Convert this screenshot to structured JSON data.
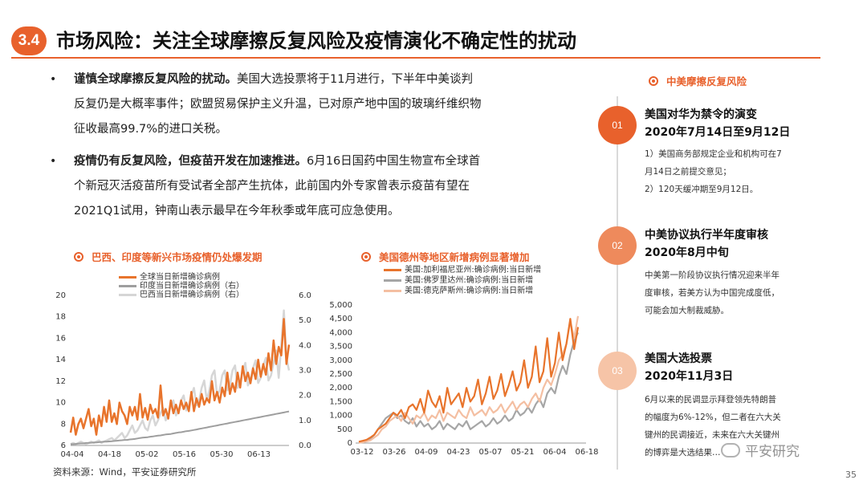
{
  "header": {
    "section_no": "3.4",
    "title": "市场风险：关注全球摩擦反复风险及疫情演化不确定性的扰动"
  },
  "bullets": [
    {
      "bold": "谨慎全球摩擦反复风险的扰动。",
      "lines": [
        "美国大选投票将于11月进行，下半年中美谈判",
        "反复仍是大概率事件；欧盟贸易保护主义升温，已对原产地中国的玻璃纤维织物",
        "征收最高99.7%的进口关税。"
      ]
    },
    {
      "bold": "疫情仍有反复风险，但疫苗开发在加速推进。",
      "lines": [
        "6月16日国药中国生物宣布全球首",
        "个新冠灭活疫苗所有受试者全部产生抗体，此前国内外专家曾表示疫苗有望在",
        "2021Q1试用，钟南山表示最早在今年秋季或年底可应急使用。"
      ]
    }
  ],
  "chart_left": {
    "heading": "巴西、印度等新兴市场疫情仍处爆发期",
    "chart_data": {
      "type": "line",
      "title": "巴西、印度等新兴市场疫情仍处爆发期",
      "x_ticks": [
        "04-04",
        "04-18",
        "05-02",
        "05-16",
        "05-30",
        "06-13"
      ],
      "ylim_left": [
        6,
        20
      ],
      "yticks_left": [
        "6",
        "8",
        "10",
        "12",
        "14",
        "16",
        "18",
        "20"
      ],
      "ylim_right": [
        0.0,
        6.0
      ],
      "yticks_right": [
        "0.0",
        "1.0",
        "2.0",
        "3.0",
        "4.0",
        "5.0",
        "6.0"
      ],
      "series": [
        {
          "name": "全球当日新增确诊病例",
          "axis": "left",
          "color": "#e8742c",
          "values": [
            7.2,
            8.6,
            7.0,
            8.0,
            8.5,
            7.6,
            8.5,
            9.4,
            7.8,
            8.5,
            7.0,
            8.8,
            7.8,
            9.6,
            8.2,
            10.2,
            8.2,
            9.0,
            8.0,
            10.0,
            9.2,
            8.8,
            8.0,
            9.6,
            8.8,
            9.6,
            8.4,
            10.8,
            8.6,
            9.5,
            8.4,
            9.8,
            9.0,
            9.4,
            8.6,
            11.6,
            8.8,
            9.4,
            8.5,
            10.2,
            9.0,
            9.8,
            9.0,
            10.2,
            9.4,
            10.0,
            9.2,
            11.0,
            9.2,
            10.4,
            9.6,
            10.8,
            9.8,
            10.4,
            10.0,
            12.0,
            10.2,
            11.0,
            10.0,
            11.4,
            10.6,
            12.8,
            10.8,
            11.8,
            11.0,
            12.8,
            11.4,
            13.4,
            12.0,
            12.8,
            11.8,
            13.2,
            12.2,
            14.0,
            12.4,
            13.6,
            12.6,
            14.6,
            13.0,
            15.8,
            13.6,
            15.2,
            14.4,
            17.8,
            13.6,
            15.4
          ]
        },
        {
          "name": "印度当日新增确诊病例（右）",
          "axis": "right",
          "color": "#9e9e9e",
          "values": [
            0.05,
            0.05,
            0.06,
            0.07,
            0.08,
            0.08,
            0.1,
            0.1,
            0.11,
            0.12,
            0.12,
            0.13,
            0.14,
            0.15,
            0.15,
            0.16,
            0.17,
            0.18,
            0.19,
            0.2,
            0.21,
            0.22,
            0.22,
            0.24,
            0.25,
            0.26,
            0.28,
            0.3,
            0.31,
            0.32,
            0.33,
            0.35,
            0.36,
            0.38,
            0.39,
            0.4,
            0.42,
            0.44,
            0.45,
            0.46,
            0.48,
            0.5,
            0.52,
            0.53,
            0.55,
            0.57,
            0.58,
            0.6,
            0.62,
            0.64,
            0.66,
            0.68,
            0.7,
            0.72,
            0.74,
            0.76,
            0.78,
            0.8,
            0.82,
            0.84,
            0.86,
            0.88,
            0.9,
            0.92,
            0.94,
            0.96,
            0.98,
            1.0,
            1.02,
            1.04,
            1.06,
            1.08,
            1.1,
            1.12,
            1.14,
            1.16,
            1.18,
            1.2,
            1.22,
            1.24,
            1.26,
            1.28,
            1.3,
            1.32,
            1.34,
            1.36
          ]
        },
        {
          "name": "巴西当日新增确诊病例（右）",
          "axis": "right",
          "color": "#d6d6d6",
          "values": [
            0.05,
            0.1,
            0.05,
            0.1,
            0.15,
            0.1,
            0.05,
            0.1,
            0.15,
            0.1,
            0.15,
            0.2,
            0.1,
            0.15,
            0.2,
            0.25,
            0.3,
            0.2,
            0.3,
            0.4,
            0.5,
            0.3,
            0.4,
            0.6,
            0.8,
            0.5,
            0.6,
            0.8,
            1.0,
            0.7,
            0.6,
            1.0,
            1.2,
            0.8,
            1.0,
            1.3,
            1.5,
            1.0,
            1.2,
            1.6,
            1.8,
            1.2,
            1.4,
            1.8,
            2.0,
            1.4,
            1.6,
            2.0,
            2.3,
            1.6,
            1.8,
            2.3,
            2.6,
            1.8,
            2.2,
            2.8,
            3.0,
            2.0,
            2.2,
            2.8,
            3.0,
            2.2,
            2.4,
            3.0,
            3.2,
            2.3,
            2.5,
            3.0,
            3.3,
            2.4,
            2.6,
            3.1,
            3.4,
            2.5,
            2.7,
            3.2,
            3.5,
            2.6,
            2.8,
            3.3,
            3.8,
            2.7,
            4.0,
            5.4,
            3.5,
            3.0
          ]
        }
      ]
    }
  },
  "chart_right": {
    "heading": "美国德州等地区新增病例显著增加",
    "chart_data": {
      "type": "line",
      "title": "美国德州等地区新增病例显著增加",
      "x_ticks": [
        "03-12",
        "03-26",
        "04-09",
        "04-23",
        "05-07",
        "05-21",
        "06-04",
        "06-18"
      ],
      "ylim": [
        0,
        5000
      ],
      "yticks": [
        "0",
        "500",
        "1,000",
        "1,500",
        "2,000",
        "2,500",
        "3,000",
        "3,500",
        "4,000",
        "4,500",
        "5,000"
      ],
      "series": [
        {
          "name": "美国:加利福尼亚州:确诊病例:当日新增",
          "color": "#e8742c",
          "values": [
            50,
            80,
            120,
            200,
            300,
            500,
            600,
            700,
            900,
            1100,
            1000,
            1200,
            900,
            1300,
            1400,
            1200,
            1600,
            1100,
            1900,
            1500,
            1300,
            1700,
            1100,
            2000,
            1400,
            1600,
            1800,
            1300,
            2000,
            1500,
            1700,
            2300,
            1400,
            1800,
            2400,
            1600,
            1900,
            2500,
            1700,
            2100,
            2600,
            1900,
            2200,
            3000,
            2000,
            2400,
            3500,
            2200,
            2600,
            3800,
            2400,
            2900,
            4000,
            3000,
            3600,
            4500,
            3400,
            4200
          ]
        },
        {
          "name": "美国:佛罗里达州:确诊病例:当日新增",
          "color": "#a6a6a6",
          "values": [
            20,
            50,
            100,
            150,
            300,
            500,
            700,
            900,
            1000,
            1100,
            900,
            1000,
            800,
            700,
            900,
            600,
            800,
            600,
            700,
            500,
            600,
            800,
            500,
            700,
            600,
            500,
            700,
            600,
            800,
            500,
            600,
            700,
            800,
            600,
            700,
            900,
            700,
            800,
            1000,
            800,
            900,
            1200,
            1000,
            1100,
            1300,
            1100,
            1400,
            1600,
            1300,
            1800,
            2000,
            1800,
            2400,
            2800,
            2500,
            3200,
            3700,
            4000
          ]
        },
        {
          "name": "美国:德克萨斯州:确诊病例:当日新增",
          "color": "#f4bfa2",
          "values": [
            10,
            30,
            60,
            100,
            200,
            300,
            500,
            600,
            800,
            900,
            1000,
            800,
            1100,
            900,
            700,
            1000,
            900,
            1100,
            800,
            1000,
            900,
            1200,
            800,
            1100,
            1000,
            900,
            1200,
            1000,
            900,
            1300,
            1000,
            1100,
            1200,
            1000,
            1300,
            1100,
            1200,
            1400,
            1100,
            1300,
            1500,
            1200,
            1400,
            1500,
            1300,
            1600,
            1800,
            1500,
            2000,
            2300,
            2100,
            2500,
            3000,
            3200,
            3600,
            4400,
            3800,
            4600
          ]
        }
      ]
    }
  },
  "timeline": {
    "heading": "中美摩擦反复风险",
    "items": [
      {
        "num": "01",
        "color": "#e8612c",
        "title1": "美国对华为禁令的演变",
        "title2": "2020年7月14日至9月12日",
        "body": [
          "1）美国商务部规定企业和机构可在7",
          "月14日之前提交意见；",
          "2）120天缓冲期至9月12日。"
        ]
      },
      {
        "num": "02",
        "color": "#ee8a5c",
        "title1": "中美协议执行半年度审核",
        "title2": "2020年8月中旬",
        "body": [
          "中美第一阶段协议执行情况迎来半年",
          "度审核，若美方认为中国完成度低，",
          "可能会加大制裁威胁。"
        ]
      },
      {
        "num": "03",
        "color": "#f6c4a7",
        "title1": "美国大选投票",
        "title2": "2020年11月3日",
        "body": [
          "6月以来的民调显示拜登领先特朗普",
          "的幅度为6%-12%，但二者在六大关",
          "键州的民调接近，未来在六大关键州",
          "的博弈是大选结果…"
        ]
      }
    ]
  },
  "footer": {
    "source": "资料来源：Wind，平安证券研究所",
    "page": "35",
    "watermark": "平安研究"
  }
}
